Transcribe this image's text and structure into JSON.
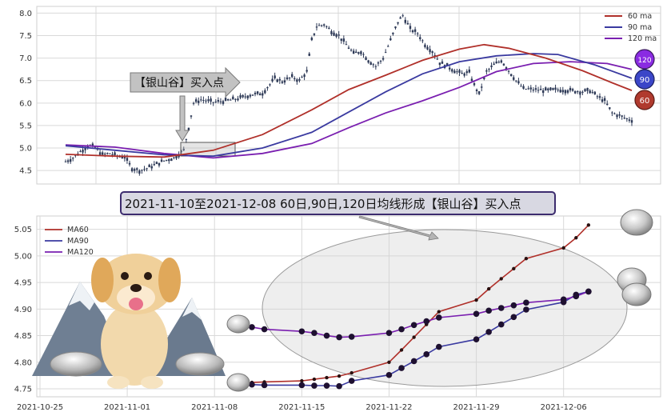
{
  "colors": {
    "ma60": "#b0302a",
    "ma90": "#3a3aa0",
    "ma120": "#7a1fb0",
    "candle": "#2e3a57",
    "grid": "#d9d9d9",
    "badge120": "#8a2be2",
    "badge90": "#3b46c8",
    "badge60": "#b03a2e"
  },
  "chart_data": [
    {
      "type": "line",
      "panel": "price",
      "description_series_drawn": "candlestick price with 60/90/120 moving averages",
      "ylim": [
        4.2,
        8.15
      ],
      "yticks": [
        "4.5",
        "5.0",
        "5.5",
        "6.0",
        "6.5",
        "7.0",
        "7.5",
        "8.0"
      ],
      "ytick_values": [
        4.5,
        5.0,
        5.5,
        6.0,
        6.5,
        7.0,
        7.5,
        8.0
      ],
      "legend": [
        "60 ma",
        "90 ma",
        "120 ma"
      ],
      "legend_placement": "top-right",
      "grid": true,
      "badges": [
        "120",
        "90",
        "60"
      ],
      "annotation": "【银山谷】买入点",
      "price_path": [
        [
          0,
          4.7
        ],
        [
          3,
          4.78
        ],
        [
          6,
          4.92
        ],
        [
          9,
          5.05
        ],
        [
          12,
          5.02
        ],
        [
          15,
          4.85
        ],
        [
          18,
          4.88
        ],
        [
          21,
          4.82
        ],
        [
          24,
          4.8
        ],
        [
          27,
          4.55
        ],
        [
          30,
          4.5
        ],
        [
          33,
          4.55
        ],
        [
          36,
          4.62
        ],
        [
          40,
          4.72
        ],
        [
          44,
          4.78
        ],
        [
          48,
          4.95
        ],
        [
          50,
          5.45
        ],
        [
          52,
          6.0
        ],
        [
          55,
          6.08
        ],
        [
          60,
          6.02
        ],
        [
          65,
          6.05
        ],
        [
          70,
          6.1
        ],
        [
          75,
          6.18
        ],
        [
          80,
          6.22
        ],
        [
          85,
          6.55
        ],
        [
          88,
          6.48
        ],
        [
          92,
          6.58
        ],
        [
          95,
          6.5
        ],
        [
          98,
          6.7
        ],
        [
          100,
          7.4
        ],
        [
          102,
          7.7
        ],
        [
          105,
          7.75
        ],
        [
          108,
          7.6
        ],
        [
          111,
          7.5
        ],
        [
          114,
          7.3
        ],
        [
          117,
          7.1
        ],
        [
          120,
          7.15
        ],
        [
          123,
          6.95
        ],
        [
          126,
          6.82
        ],
        [
          129,
          7.0
        ],
        [
          132,
          7.4
        ],
        [
          135,
          7.8
        ],
        [
          137,
          7.95
        ],
        [
          140,
          7.65
        ],
        [
          143,
          7.55
        ],
        [
          146,
          7.3
        ],
        [
          149,
          7.15
        ],
        [
          152,
          6.9
        ],
        [
          155,
          6.82
        ],
        [
          158,
          6.72
        ],
        [
          161,
          6.65
        ],
        [
          164,
          6.68
        ],
        [
          166,
          6.4
        ],
        [
          168,
          6.2
        ],
        [
          171,
          6.7
        ],
        [
          174,
          6.85
        ],
        [
          177,
          6.95
        ],
        [
          180,
          6.72
        ],
        [
          183,
          6.5
        ],
        [
          186,
          6.32
        ],
        [
          190,
          6.3
        ],
        [
          195,
          6.28
        ],
        [
          200,
          6.3
        ],
        [
          205,
          6.28
        ],
        [
          210,
          6.25
        ],
        [
          213,
          6.28
        ],
        [
          216,
          6.15
        ],
        [
          219,
          6.05
        ],
        [
          222,
          5.78
        ],
        [
          225,
          5.72
        ],
        [
          228,
          5.65
        ],
        [
          230,
          5.62
        ]
      ],
      "ma60_path": [
        [
          0,
          4.86
        ],
        [
          20,
          4.82
        ],
        [
          40,
          4.8
        ],
        [
          60,
          4.95
        ],
        [
          80,
          5.3
        ],
        [
          100,
          5.85
        ],
        [
          115,
          6.3
        ],
        [
          130,
          6.62
        ],
        [
          145,
          6.95
        ],
        [
          160,
          7.2
        ],
        [
          170,
          7.3
        ],
        [
          180,
          7.22
        ],
        [
          195,
          7.0
        ],
        [
          210,
          6.72
        ],
        [
          222,
          6.45
        ],
        [
          230,
          6.28
        ]
      ],
      "ma90_path": [
        [
          0,
          5.05
        ],
        [
          20,
          4.95
        ],
        [
          40,
          4.85
        ],
        [
          60,
          4.82
        ],
        [
          80,
          5.0
        ],
        [
          100,
          5.35
        ],
        [
          115,
          5.8
        ],
        [
          130,
          6.25
        ],
        [
          145,
          6.65
        ],
        [
          160,
          6.92
        ],
        [
          175,
          7.05
        ],
        [
          190,
          7.1
        ],
        [
          200,
          7.08
        ],
        [
          215,
          6.85
        ],
        [
          230,
          6.55
        ]
      ],
      "ma120_path": [
        [
          0,
          5.07
        ],
        [
          20,
          5.02
        ],
        [
          40,
          4.88
        ],
        [
          60,
          4.78
        ],
        [
          80,
          4.88
        ],
        [
          100,
          5.1
        ],
        [
          115,
          5.45
        ],
        [
          130,
          5.78
        ],
        [
          145,
          6.05
        ],
        [
          160,
          6.35
        ],
        [
          175,
          6.7
        ],
        [
          190,
          6.88
        ],
        [
          205,
          6.92
        ],
        [
          220,
          6.88
        ],
        [
          230,
          6.75
        ]
      ]
    },
    {
      "type": "line",
      "panel": "zoom",
      "title": "2021-11-10至2021-12-08 60日,90日,120日均线形成【银山谷】买入点",
      "xlim": [
        "2021-10-25",
        "2021-12-13"
      ],
      "xticks": [
        "2021-10-25",
        "2021-11-01",
        "2021-11-08",
        "2021-11-15",
        "2021-11-22",
        "2021-11-29",
        "2021-12-06"
      ],
      "ylim": [
        4.735,
        5.075
      ],
      "yticks": [
        "4.75",
        "4.80",
        "4.85",
        "4.90",
        "4.95",
        "5.00",
        "5.05"
      ],
      "ytick_values": [
        4.75,
        4.8,
        4.85,
        4.9,
        4.95,
        5.0,
        5.05
      ],
      "legend_placement": "top-left",
      "grid": true,
      "series": [
        {
          "name": "MA60",
          "color": "#b0302a",
          "x": [
            "2021-11-10",
            "2021-11-11",
            "2021-11-12",
            "2021-11-15",
            "2021-11-16",
            "2021-11-17",
            "2021-11-18",
            "2021-11-19",
            "2021-11-22",
            "2021-11-23",
            "2021-11-24",
            "2021-11-25",
            "2021-11-26",
            "2021-11-29",
            "2021-11-30",
            "2021-12-01",
            "2021-12-02",
            "2021-12-03",
            "2021-12-06",
            "2021-12-07",
            "2021-12-08"
          ],
          "y": [
            4.76,
            4.762,
            4.763,
            4.765,
            4.768,
            4.771,
            4.774,
            4.78,
            4.8,
            4.823,
            4.847,
            4.871,
            4.895,
            4.917,
            4.938,
            4.957,
            4.976,
            4.995,
            5.015,
            5.034,
            5.058
          ]
        },
        {
          "name": "MA90",
          "color": "#3a3aa0",
          "x": [
            "2021-11-10",
            "2021-11-11",
            "2021-11-12",
            "2021-11-15",
            "2021-11-16",
            "2021-11-17",
            "2021-11-18",
            "2021-11-19",
            "2021-11-22",
            "2021-11-23",
            "2021-11-24",
            "2021-11-25",
            "2021-11-26",
            "2021-11-29",
            "2021-11-30",
            "2021-12-01",
            "2021-12-02",
            "2021-12-03",
            "2021-12-06",
            "2021-12-07",
            "2021-12-08"
          ],
          "y": [
            4.758,
            4.758,
            4.757,
            4.757,
            4.756,
            4.756,
            4.755,
            4.765,
            4.776,
            4.789,
            4.802,
            4.815,
            4.829,
            4.843,
            4.857,
            4.871,
            4.885,
            4.899,
            4.913,
            4.927,
            4.933
          ]
        },
        {
          "name": "MA120",
          "color": "#7a1fb0",
          "x": [
            "2021-11-10",
            "2021-11-11",
            "2021-11-12",
            "2021-11-15",
            "2021-11-16",
            "2021-11-17",
            "2021-11-18",
            "2021-11-19",
            "2021-11-22",
            "2021-11-23",
            "2021-11-24",
            "2021-11-25",
            "2021-11-26",
            "2021-11-29",
            "2021-11-30",
            "2021-12-01",
            "2021-12-02",
            "2021-12-03",
            "2021-12-06",
            "2021-12-07",
            "2021-12-08"
          ],
          "y": [
            4.868,
            4.866,
            4.862,
            4.858,
            4.855,
            4.85,
            4.847,
            4.848,
            4.855,
            4.862,
            4.87,
            4.877,
            4.884,
            4.891,
            4.897,
            4.902,
            4.907,
            4.912,
            4.918,
            4.924,
            4.933
          ]
        }
      ]
    }
  ]
}
